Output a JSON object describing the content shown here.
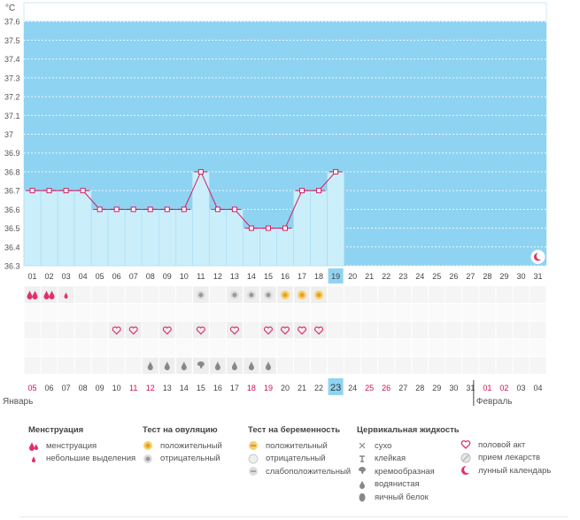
{
  "chart_data": {
    "type": "line",
    "unit": "°C",
    "y_ticks": [
      "36.3",
      "36.4",
      "36.5",
      "36.6",
      "36.7",
      "36.8",
      "36.9",
      "37",
      "37.1",
      "37.2",
      "37.3",
      "37.4",
      "37.5",
      "37.6"
    ],
    "ylim": [
      36.3,
      37.7
    ],
    "cycle_days": [
      "01",
      "02",
      "03",
      "04",
      "05",
      "06",
      "07",
      "08",
      "09",
      "10",
      "11",
      "12",
      "13",
      "14",
      "15",
      "16",
      "17",
      "18",
      "19",
      "20",
      "21",
      "22",
      "23",
      "24",
      "25",
      "26",
      "27",
      "28",
      "29",
      "30",
      "31"
    ],
    "temperatures": [
      36.7,
      36.7,
      36.7,
      36.7,
      36.6,
      36.6,
      36.6,
      36.6,
      36.6,
      36.6,
      36.8,
      36.6,
      36.6,
      36.5,
      36.5,
      36.5,
      36.7,
      36.7,
      36.8
    ],
    "current_day_index": 18,
    "calendar_dates": [
      "05",
      "06",
      "07",
      "08",
      "09",
      "10",
      "11",
      "12",
      "13",
      "14",
      "15",
      "16",
      "17",
      "18",
      "19",
      "20",
      "21",
      "22",
      "23",
      "24",
      "25",
      "26",
      "27",
      "28",
      "29",
      "30",
      "31",
      "01",
      "02",
      "03",
      "04"
    ],
    "highlight_dates": [
      "05",
      "11",
      "12",
      "18",
      "19",
      "25",
      "26",
      "01",
      "02"
    ],
    "month_start": "Январь",
    "month_next": "Февраль",
    "month_next_index": 27,
    "rows": {
      "menstruation": [
        [
          "big",
          "big"
        ],
        [
          "big",
          "big"
        ],
        [
          "small"
        ],
        [],
        [],
        [],
        [],
        [],
        [],
        [],
        [],
        [],
        [],
        [],
        [],
        [],
        [],
        [],
        []
      ],
      "ovulation": [
        "",
        "",
        "",
        "",
        "",
        "",
        "",
        "",
        "",
        "",
        "neg",
        "",
        "neg",
        "neg",
        "neg",
        "pos",
        "pos",
        "pos",
        ""
      ],
      "sex": [
        "",
        "",
        "",
        "",
        "",
        "sex",
        "sex",
        "",
        "sex",
        "",
        "sex",
        "",
        "sex",
        "",
        "sex",
        "sex",
        "sex",
        "sex",
        ""
      ],
      "fluid": [
        "",
        "",
        "",
        "",
        "",
        "",
        "",
        "drop",
        "drop",
        "drop",
        "creamy",
        "drop",
        "drop",
        "drop",
        "drop",
        "",
        "",
        "",
        ""
      ]
    },
    "moon_day_index": 30
  },
  "legend": {
    "menstruation": {
      "title": "Менструация",
      "items": [
        "менструация",
        "небольшие выделения"
      ]
    },
    "ovulation": {
      "title": "Тест на овуляцию",
      "items": [
        "положительный",
        "отрицательный"
      ]
    },
    "pregnancy": {
      "title": "Тест на беременность",
      "items": [
        "положительный",
        "отрицательный",
        "слабоположительный"
      ]
    },
    "fluid": {
      "title": "Цервикальная жидкость",
      "items": [
        "сухо",
        "клейкая",
        "кремообразная",
        "водянистая",
        "яичный белок"
      ]
    },
    "other": {
      "items": [
        "половой акт",
        "прием лекарств",
        "лунный календарь"
      ]
    }
  },
  "colors": {
    "sky": "#8fd3f2",
    "bar": "#cbeefb",
    "line": "#d02060",
    "red": "#d0104a",
    "today": "#8fd3f2"
  }
}
